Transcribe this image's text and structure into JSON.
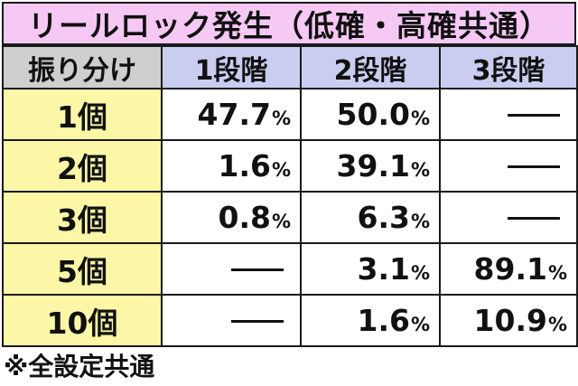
{
  "title": "リールロック発生（低確・高確共通）",
  "table": {
    "header": {
      "corner": "振り分け",
      "stages": [
        "1段階",
        "2段階",
        "3段階"
      ]
    },
    "rows": [
      {
        "label": "1個",
        "cells": [
          {
            "value": "47.7",
            "unit": "%"
          },
          {
            "value": "50.0",
            "unit": "%"
          },
          {
            "value": "—",
            "unit": ""
          }
        ]
      },
      {
        "label": "2個",
        "cells": [
          {
            "value": "1.6",
            "unit": "%"
          },
          {
            "value": "39.1",
            "unit": "%"
          },
          {
            "value": "—",
            "unit": ""
          }
        ]
      },
      {
        "label": "3個",
        "cells": [
          {
            "value": "0.8",
            "unit": "%"
          },
          {
            "value": "6.3",
            "unit": "%"
          },
          {
            "value": "—",
            "unit": ""
          }
        ]
      },
      {
        "label": "5個",
        "cells": [
          {
            "value": "—",
            "unit": ""
          },
          {
            "value": "3.1",
            "unit": "%"
          },
          {
            "value": "89.1",
            "unit": "%"
          }
        ]
      },
      {
        "label": "10個",
        "cells": [
          {
            "value": "—",
            "unit": ""
          },
          {
            "value": "1.6",
            "unit": "%"
          },
          {
            "value": "10.9",
            "unit": "%"
          }
        ]
      }
    ]
  },
  "footnote": "※全設定共通",
  "colors": {
    "title_bg": "#f6c8f4",
    "header_corner_bg": "#cfcfcf",
    "header_stage_bg": "#c9cef0",
    "row_label_bg": "#fcf7a7",
    "cell_bg": "#ffffff",
    "border": "#1a1a1a"
  }
}
